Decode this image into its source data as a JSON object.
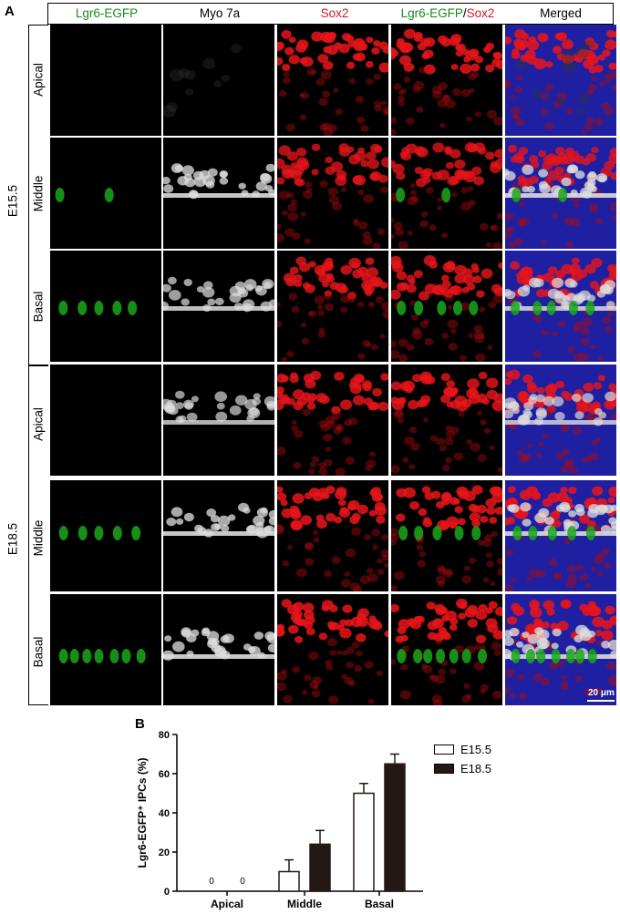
{
  "panel_a": {
    "label": "A",
    "columns": [
      "Lgr6-EGFP",
      "Myo 7a",
      "Sox2",
      "Lgr6-EGFP",
      "/",
      "Sox2",
      "Merged"
    ],
    "groups": [
      {
        "label": "E15.5",
        "rows": [
          "Apical",
          "Middle",
          "Basal"
        ]
      },
      {
        "label": "E18.5",
        "rows": [
          "Apical",
          "Middle",
          "Basal"
        ]
      }
    ],
    "scale_bar": "20 μm",
    "colors": {
      "green": "#1aa81a",
      "white": "#dddddd",
      "red": "#e8151a",
      "blue": "#2a2ad8"
    }
  },
  "panel_b": {
    "label": "B",
    "legend": [
      "E15.5",
      "E18.5"
    ],
    "zero_labels": [
      "0",
      "0"
    ]
  },
  "chart_data": {
    "type": "bar",
    "categories": [
      "Apical",
      "Middle",
      "Basal"
    ],
    "series": [
      {
        "name": "E15.5",
        "values": [
          0,
          10,
          50
        ],
        "errors": [
          0,
          6,
          5
        ],
        "fill": "#ffffff"
      },
      {
        "name": "E18.5",
        "values": [
          0,
          24,
          65
        ],
        "errors": [
          0,
          7,
          5
        ],
        "fill": "#231815"
      }
    ],
    "ylabel": "Lgr6-EGFP⁺ IPCs (%)",
    "xlabel": "",
    "ylim": [
      0,
      80
    ],
    "yticks": [
      0,
      20,
      40,
      60,
      80
    ],
    "grid": false
  }
}
